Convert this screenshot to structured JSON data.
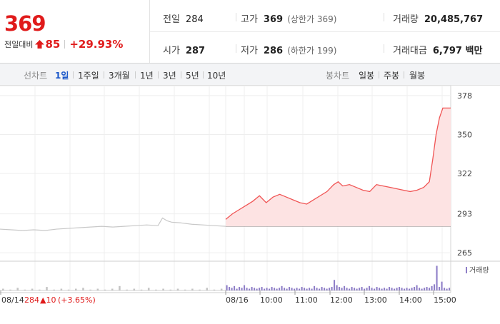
{
  "quote": {
    "price": "369",
    "change_label": "전일대비",
    "change_amount": "85",
    "change_rate": "+29.93%",
    "prev_close_label": "전일",
    "prev_close": "284",
    "open_label": "시가",
    "open": "287",
    "high_label": "고가",
    "high": "369",
    "upper_limit": "(상한가 369)",
    "low_label": "저가",
    "low": "286",
    "lower_limit": "(하한가 199)",
    "volume_label": "거래량",
    "volume": "20,485,767",
    "amount_label": "거래대금",
    "amount": "6,797 백만"
  },
  "period_bar": {
    "line_label": "선차트",
    "line_options": [
      "1일",
      "1주일",
      "3개월",
      "1년",
      "3년",
      "5년",
      "10년"
    ],
    "candle_label": "봉차트",
    "candle_options": [
      "일봉",
      "주봉",
      "월봉"
    ],
    "active": "1일"
  },
  "colors": {
    "up": "#e01b1b",
    "down": "#1a57c9",
    "price_line": "#f05454",
    "price_fill": "#fde3e3",
    "prev_line": "#c8c8c8",
    "volume_prev": "#c4c4c4",
    "volume_today": "#8e7ec7"
  },
  "chart_data": {
    "type": "line",
    "y_ticks": [
      378,
      350,
      322,
      293,
      265
    ],
    "ylim": [
      261,
      381
    ],
    "prev_close_ref": 284,
    "x_tick_labels": [
      "08/14",
      "08/16",
      "10:00",
      "11:00",
      "12:00",
      "13:00",
      "14:00",
      "15:00"
    ],
    "prev_day_label": {
      "date": "08/14",
      "price": "284",
      "change": "▲10",
      "rate": "(+3.65%)"
    },
    "volume_legend": "거래량",
    "grid": true,
    "prev_day_series": {
      "points": [
        [
          0,
          282
        ],
        [
          0.05,
          281.5
        ],
        [
          0.1,
          281
        ],
        [
          0.15,
          281.5
        ],
        [
          0.2,
          281
        ],
        [
          0.25,
          282
        ],
        [
          0.3,
          282.5
        ],
        [
          0.35,
          283
        ],
        [
          0.4,
          283.5
        ],
        [
          0.45,
          284
        ],
        [
          0.5,
          283.5
        ],
        [
          0.55,
          284
        ],
        [
          0.6,
          284.5
        ],
        [
          0.65,
          285
        ],
        [
          0.7,
          284.5
        ],
        [
          0.72,
          290
        ],
        [
          0.74,
          288
        ],
        [
          0.76,
          287
        ],
        [
          0.8,
          286.5
        ],
        [
          0.85,
          285.5
        ],
        [
          0.9,
          285
        ],
        [
          0.95,
          284.5
        ],
        [
          1,
          284
        ]
      ]
    },
    "today_series": {
      "points": [
        [
          0,
          289
        ],
        [
          0.03,
          293
        ],
        [
          0.06,
          296
        ],
        [
          0.09,
          299
        ],
        [
          0.12,
          302
        ],
        [
          0.15,
          306
        ],
        [
          0.18,
          301
        ],
        [
          0.21,
          305
        ],
        [
          0.24,
          307
        ],
        [
          0.27,
          305
        ],
        [
          0.3,
          303
        ],
        [
          0.33,
          301
        ],
        [
          0.36,
          300
        ],
        [
          0.39,
          303
        ],
        [
          0.42,
          306
        ],
        [
          0.45,
          309
        ],
        [
          0.48,
          314
        ],
        [
          0.5,
          316
        ],
        [
          0.52,
          313
        ],
        [
          0.55,
          314
        ],
        [
          0.58,
          312
        ],
        [
          0.61,
          310
        ],
        [
          0.64,
          309
        ],
        [
          0.67,
          314
        ],
        [
          0.7,
          313
        ],
        [
          0.73,
          312
        ],
        [
          0.76,
          311
        ],
        [
          0.79,
          310
        ],
        [
          0.82,
          309
        ],
        [
          0.85,
          310
        ],
        [
          0.88,
          312
        ],
        [
          0.905,
          316
        ],
        [
          0.92,
          332
        ],
        [
          0.935,
          350
        ],
        [
          0.95,
          362
        ],
        [
          0.965,
          369
        ],
        [
          1,
          369
        ]
      ]
    },
    "prev_day_volume": [
      2,
      1,
      3,
      1,
      2,
      1,
      4,
      1,
      2,
      1,
      2,
      3,
      1,
      2,
      1,
      2,
      5,
      1,
      2,
      1,
      3,
      1,
      2,
      1,
      2,
      1,
      2,
      1,
      3,
      1,
      2
    ],
    "today_volume": [
      6,
      4,
      3,
      5,
      2,
      4,
      3,
      6,
      3,
      2,
      4,
      3,
      2,
      3,
      4,
      2,
      3,
      2,
      4,
      3,
      2,
      3,
      5,
      3,
      2,
      4,
      3,
      2,
      3,
      2,
      4,
      3,
      2,
      3,
      2,
      5,
      3,
      2,
      4,
      3,
      2,
      3,
      4,
      12,
      6,
      4,
      3,
      5,
      3,
      2,
      4,
      3,
      2,
      3,
      4,
      2,
      3,
      5,
      3,
      2,
      4,
      3,
      2,
      3,
      2,
      4,
      3,
      2,
      3,
      4,
      3,
      2,
      3,
      2,
      3,
      4,
      6,
      3,
      2,
      3,
      4,
      3,
      5,
      7,
      28,
      4,
      10,
      3,
      2,
      3
    ]
  }
}
